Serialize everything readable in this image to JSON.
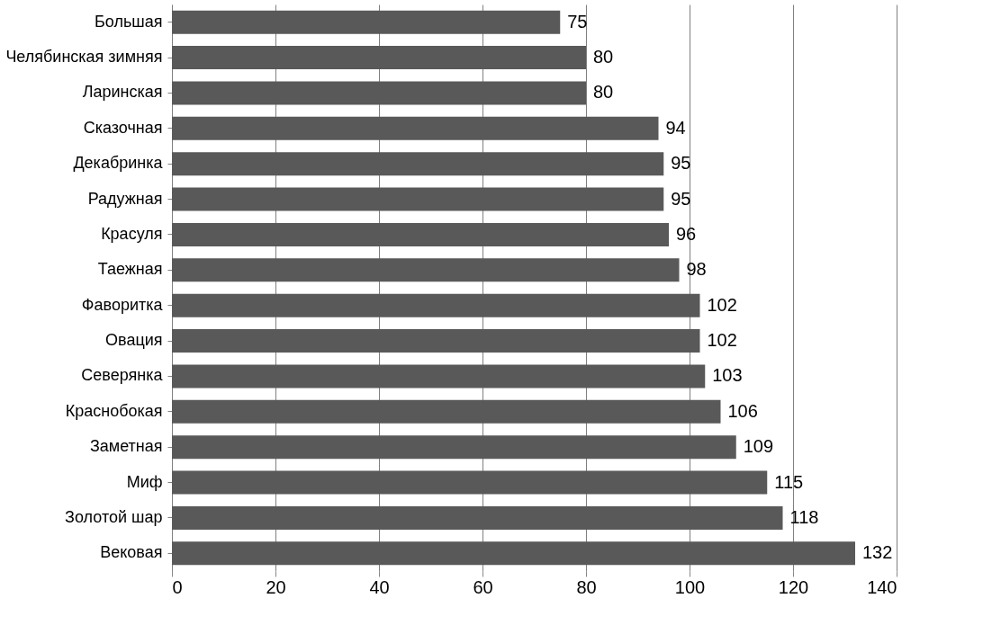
{
  "chart_data": {
    "type": "bar",
    "orientation": "horizontal",
    "categories": [
      "Большая",
      "Челябинская зимняя",
      "Ларинская",
      "Сказочная",
      "Декабринка",
      "Радужная",
      "Красуля",
      "Таежная",
      "Фаворитка",
      "Овация",
      "Северянка",
      "Краснобокая",
      "Заметная",
      "Миф",
      "Золотой шар",
      "Вековая"
    ],
    "values": [
      75,
      80,
      80,
      94,
      95,
      95,
      96,
      98,
      102,
      102,
      103,
      106,
      109,
      115,
      118,
      132
    ],
    "color": "#595959",
    "xlim": [
      0,
      140
    ],
    "xticks": [
      0,
      20,
      40,
      60,
      80,
      100,
      120,
      140
    ],
    "grid": "x",
    "data_labels": true
  }
}
